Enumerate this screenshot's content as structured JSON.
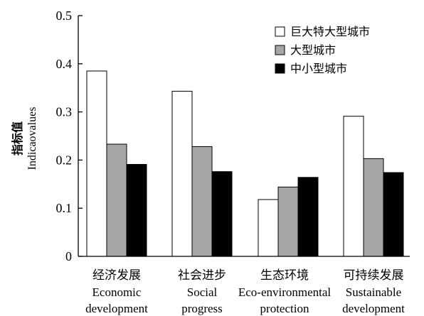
{
  "chart_data": {
    "type": "bar",
    "ylabel_cn": "指标值",
    "ylabel_en": "Indicaovalues",
    "ylim": [
      0,
      0.5
    ],
    "yticks": [
      "0",
      "0.1",
      "0.2",
      "0.3",
      "0.4",
      "0.5"
    ],
    "categories": [
      {
        "cn": "经济发展",
        "en1": "Economic",
        "en2": "development"
      },
      {
        "cn": "社会进步",
        "en1": "Social",
        "en2": "progress"
      },
      {
        "cn": "生态环境",
        "en1": "Eco-environmental",
        "en2": "protection"
      },
      {
        "cn": "可持续发展",
        "en1": "Sustainable",
        "en2": "development"
      }
    ],
    "series": [
      {
        "name": "巨大特大型城市",
        "color": "#ffffff",
        "values": [
          0.385,
          0.343,
          0.118,
          0.291
        ]
      },
      {
        "name": "大型城市",
        "color": "#a6a6a6",
        "values": [
          0.233,
          0.228,
          0.144,
          0.203
        ]
      },
      {
        "name": "中小型城市",
        "color": "#000000",
        "values": [
          0.191,
          0.176,
          0.164,
          0.174
        ]
      }
    ],
    "legend_position": "top-right",
    "grid": false
  }
}
